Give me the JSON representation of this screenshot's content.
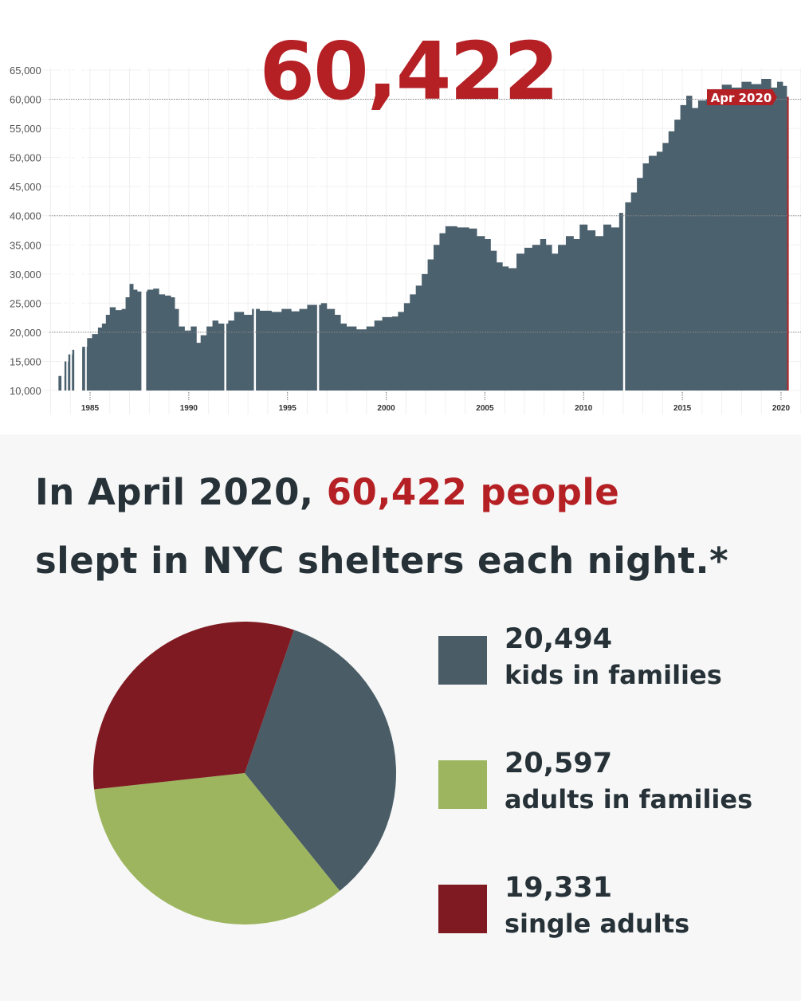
{
  "headline_number": "60,422",
  "headline": {
    "part1": "In April 2020, ",
    "highlight": "60,422 people",
    "part2": "slept in NYC shelters each night.*"
  },
  "colors": {
    "bar": "#4c616e",
    "accent": "#b52025",
    "kids": "#4a5c66",
    "adults_families": "#9db55f",
    "single_adults": "#7f1a22",
    "text": "#263238"
  },
  "chart_data": [
    {
      "type": "area",
      "title": "",
      "marker_label": "Apr 2020",
      "xlim": [
        1982.5,
        2020.9
      ],
      "ylim": [
        10000,
        65000
      ],
      "yticks": [
        10000,
        15000,
        20000,
        25000,
        30000,
        35000,
        40000,
        45000,
        50000,
        55000,
        60000,
        65000
      ],
      "ytick_labels": [
        "10,000",
        "15,000",
        "20,000",
        "25,000",
        "30,000",
        "35,000",
        "40,000",
        "45,000",
        "50,000",
        "55,000",
        "60,000",
        "65,000"
      ],
      "reference_lines": [
        20000,
        40000,
        60000
      ],
      "xticks": [
        1985,
        1990,
        1995,
        2000,
        2005,
        2010,
        2015,
        2020
      ],
      "xtick_labels": [
        "1985",
        "1990",
        "1995",
        "2000",
        "2005",
        "2010",
        "2015",
        "2020"
      ],
      "gaps": [
        1984.4,
        1987.6,
        1991.8,
        1993.3,
        1996.5,
        2012.0
      ],
      "x": [
        1983.4,
        1983.7,
        1983.9,
        1984.1,
        1984.6,
        1984.85,
        1985.1,
        1985.4,
        1985.6,
        1985.8,
        1986.0,
        1986.3,
        1986.6,
        1986.8,
        1987.0,
        1987.2,
        1987.4,
        1987.9,
        1988.2,
        1988.5,
        1988.8,
        1989.1,
        1989.3,
        1989.5,
        1989.8,
        1990.1,
        1990.4,
        1990.6,
        1990.9,
        1991.2,
        1991.5,
        1992.0,
        1992.3,
        1992.8,
        1993.2,
        1993.6,
        1994.2,
        1994.7,
        1995.2,
        1995.6,
        1996.0,
        1996.7,
        1997.0,
        1997.4,
        1997.7,
        1998.0,
        1998.5,
        1999.0,
        1999.4,
        1999.8,
        2000.3,
        2000.6,
        2000.9,
        2001.2,
        2001.5,
        2001.8,
        2002.1,
        2002.4,
        2002.7,
        2003.0,
        2003.6,
        2004.2,
        2004.6,
        2005.0,
        2005.3,
        2005.6,
        2005.9,
        2006.2,
        2006.6,
        2007.0,
        2007.4,
        2007.8,
        2008.1,
        2008.4,
        2008.7,
        2009.1,
        2009.5,
        2009.8,
        2010.2,
        2010.6,
        2011.0,
        2011.4,
        2011.8,
        2012.1,
        2012.4,
        2012.7,
        2013.0,
        2013.3,
        2013.7,
        2014.0,
        2014.3,
        2014.6,
        2014.9,
        2015.2,
        2015.5,
        2015.8,
        2016.2,
        2016.6,
        2017.0,
        2017.5,
        2018.0,
        2018.5,
        2019.0,
        2019.5,
        2019.8,
        2020.1,
        2020.3
      ],
      "y": [
        12500,
        15000,
        16200,
        17000,
        17500,
        19000,
        19700,
        20800,
        21500,
        23000,
        24300,
        23800,
        24000,
        26000,
        28300,
        27300,
        27000,
        27300,
        27500,
        26500,
        26300,
        26000,
        24000,
        21000,
        20300,
        21000,
        18200,
        19500,
        21000,
        22000,
        21500,
        22000,
        23500,
        23000,
        24000,
        23700,
        23500,
        24000,
        23600,
        24000,
        24700,
        25000,
        24000,
        23000,
        21500,
        21000,
        20500,
        21000,
        22000,
        22600,
        22700,
        23500,
        25000,
        26500,
        28000,
        30000,
        32500,
        35000,
        37000,
        38200,
        38000,
        37800,
        36500,
        36000,
        34000,
        32000,
        31300,
        31000,
        33500,
        34500,
        35000,
        36000,
        35000,
        33500,
        35000,
        36500,
        36000,
        38500,
        37500,
        36500,
        38500,
        38000,
        40500,
        42300,
        44000,
        46500,
        49000,
        50300,
        51000,
        52500,
        54500,
        56500,
        59000,
        60600,
        58500,
        59800,
        60000,
        61000,
        62500,
        62000,
        63000,
        62600,
        63500,
        62000,
        63000,
        62300,
        60422
      ]
    },
    {
      "type": "pie",
      "labels": [
        "kids in families",
        "adults in families",
        "single adults"
      ],
      "values": [
        20494,
        20597,
        19331
      ],
      "value_labels": [
        "20,494",
        "20,597",
        "19,331"
      ],
      "legend_placement": "right"
    }
  ]
}
